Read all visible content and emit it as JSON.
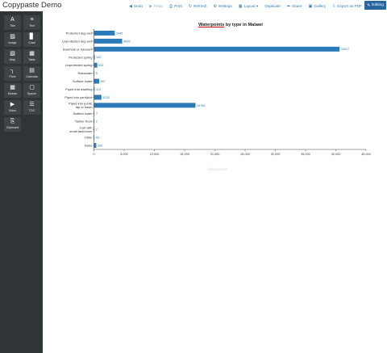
{
  "app": {
    "title": "Copypaste Demo"
  },
  "toolbar": {
    "buttons": [
      {
        "label": "Undo",
        "icon": "undo-icon",
        "glyph": "◀",
        "disabled": false
      },
      {
        "label": "Redo",
        "icon": "redo-icon",
        "glyph": "▶",
        "disabled": true
      },
      {
        "label": "Print",
        "icon": "print-icon",
        "glyph": "⎙",
        "disabled": false
      },
      {
        "label": "Refresh",
        "icon": "refresh-icon",
        "glyph": "↻",
        "disabled": false
      },
      {
        "label": "Settings",
        "icon": "settings-icon",
        "glyph": "⚙",
        "disabled": false
      },
      {
        "label": "Layout ▾",
        "icon": "layout-icon",
        "glyph": "▦",
        "disabled": false
      },
      {
        "label": "Duplicate",
        "icon": "",
        "glyph": "",
        "disabled": false
      },
      {
        "label": "Share",
        "icon": "share-icon",
        "glyph": "➦",
        "disabled": false
      },
      {
        "label": "Gallery",
        "icon": "gallery-icon",
        "glyph": "▣",
        "disabled": false
      },
      {
        "label": "Export as PDF",
        "icon": "export-icon",
        "glyph": "⇩",
        "disabled": false
      }
    ],
    "edit_label": "Editing"
  },
  "sidebar": {
    "tools": [
      {
        "label": "Title",
        "glyph": "A",
        "icon": "title-icon"
      },
      {
        "label": "Text",
        "glyph": "≡",
        "icon": "text-icon"
      },
      {
        "label": "Image",
        "glyph": "▨",
        "icon": "image-icon"
      },
      {
        "label": "Chart",
        "glyph": "▊",
        "icon": "chart-icon"
      },
      {
        "label": "Map",
        "glyph": "▧",
        "icon": "map-icon"
      },
      {
        "label": "Table",
        "glyph": "▦",
        "icon": "table-icon"
      },
      {
        "label": "Pivot",
        "glyph": "┐",
        "icon": "pivot-icon"
      },
      {
        "label": "Calendar",
        "glyph": "▤",
        "icon": "calendar-icon"
      },
      {
        "label": "Mosaic",
        "glyph": "▦",
        "icon": "mosaic-icon"
      },
      {
        "label": "Spacer",
        "glyph": "▢",
        "icon": "spacer-icon"
      },
      {
        "label": "Video",
        "glyph": "▶",
        "icon": "video-icon"
      },
      {
        "label": "TOC",
        "glyph": "☰",
        "icon": "toc-icon"
      },
      {
        "label": "Clipboard",
        "glyph": "⎘",
        "icon": "clipboard-icon"
      }
    ]
  },
  "chart_data": {
    "type": "bar",
    "orientation": "horizontal",
    "title": "Waterpoints by type in Malawi",
    "title_link_word": "Waterpoints",
    "title_rest": " by type in Malawi",
    "categories": [
      "Protected dug well",
      "Unprotected dug well",
      "Borehole or tubewell",
      "Protected spring",
      "Unprotected spring",
      "Rainwater",
      "Surface water",
      "Piped into dwelling",
      "Piped into yard/plot",
      "Piped into public tap or basin",
      "Bottled water",
      "Tanker truck",
      "Cart with small tank/drum",
      "Other",
      "None"
    ],
    "values": [
      3445,
      4669,
      40617,
      140,
      554,
      5,
      867,
      113,
      1233,
      16788,
      3,
      2,
      2,
      45,
      390
    ],
    "value_labels": [
      "3445",
      "4669",
      "40617",
      "140",
      "554",
      "5",
      "867",
      "113",
      "1233",
      "16788",
      "3",
      "2",
      "2",
      "45",
      "390"
    ],
    "xlim": [
      0,
      45000
    ],
    "xticks": [
      0,
      5000,
      10000,
      15000,
      20000,
      25000,
      30000,
      35000,
      40000,
      45000
    ],
    "xtick_labels": [
      "0",
      "5,000",
      "10,000",
      "15,000",
      "20,000",
      "25,000",
      "30,000",
      "35,000",
      "40,000",
      "45,000"
    ],
    "bar_color": "#2b7bba",
    "grid": false
  },
  "hint": {
    "click_to_edit": "Click to Edit"
  }
}
